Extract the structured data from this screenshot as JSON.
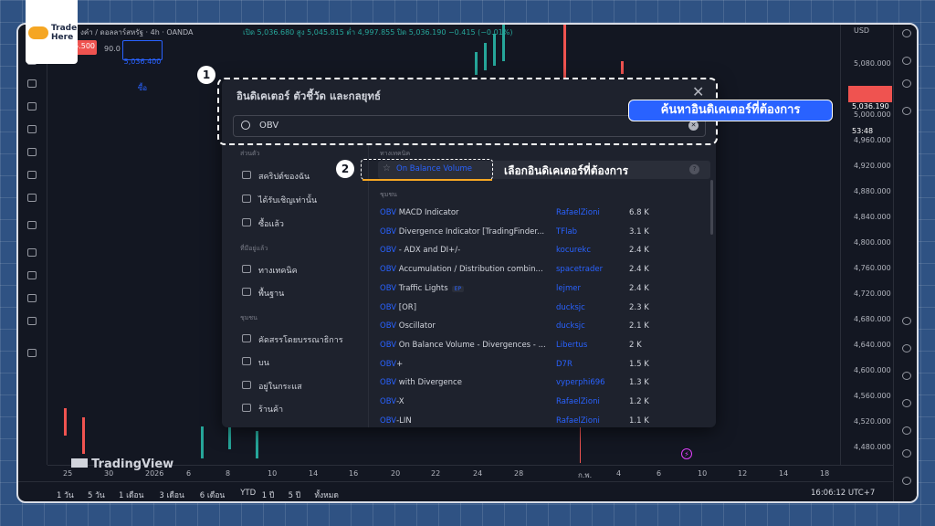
{
  "logo": {
    "line1": "Trade",
    "line2": "Here"
  },
  "header": {
    "symbol": "งคำ / ดอลลาร์สหรัฐ · 4h · OANDA",
    "ohlc": "เปิด 5,036.680 สูง 5,045.815 ต่ำ 4,997.855 ปิด 5,036.190 −0.415 (−0.01%)",
    "sell": "5.500",
    "spread": "90.0",
    "buy": "5,036.400",
    "buy_label": "ซื้อ"
  },
  "price_axis": {
    "currency": "USD",
    "labels": [
      "5,080.000",
      "5,000.000",
      "4,960.000",
      "4,920.000",
      "4,880.000",
      "4,840.000",
      "4,800.000",
      "4,760.000",
      "4,720.000",
      "4,680.000",
      "4,640.000",
      "4,600.000",
      "4,560.000",
      "4,520.000",
      "4,480.000"
    ],
    "last_price": "5,036.190",
    "countdown": "53:48"
  },
  "time_axis": [
    "25",
    "30",
    "2026",
    "6",
    "8",
    "10",
    "14",
    "16",
    "20",
    "22",
    "24",
    "28",
    "ก.พ.",
    "4",
    "6",
    "10",
    "12",
    "14",
    "18"
  ],
  "watermark": "TradingView",
  "ranges": [
    "1 วัน",
    "5 วัน",
    "1 เดือน",
    "3 เดือน",
    "6 เดือน",
    "YTD",
    "1 ปี",
    "5 ปี",
    "ทั้งหมด"
  ],
  "clock": "16:06:12 UTC+7",
  "dialog": {
    "title": "อินดิเคเตอร์ ตัวชี้วัด และกลยุทธ์",
    "search": "OBV",
    "sections": [
      {
        "heading": "ส่วนตัว",
        "items": [
          "สคริปต์ของฉัน",
          "ได้รับเชิญเท่านั้น",
          "ซื้อแล้ว"
        ]
      },
      {
        "heading": "ที่มีอยู่แล้ว",
        "items": [
          "ทางเทคนิค",
          "พื้นฐาน"
        ]
      },
      {
        "heading": "ชุมชน",
        "items": [
          "คัดสรรโดยบรรณาธิการ",
          "บน",
          "อยู่ในกระแส",
          "ร้านค้า"
        ]
      }
    ],
    "technical_heading": "ทางเทคนิค",
    "technical_result": "On Balance Volume",
    "community_heading": "ชุมชน",
    "rows": [
      [
        "OBV",
        " MACD Indicator",
        "RafaelZioni",
        "6.8 K"
      ],
      [
        "OBV",
        " Divergence Indicator [TradingFinder...",
        "TFlab",
        "3.1 K"
      ],
      [
        "OBV",
        " - ADX and DI+/-",
        "kocurekc",
        "2.4 K"
      ],
      [
        "OBV",
        " Accumulation / Distribution combin...",
        "spacetrader",
        "2.4 K"
      ],
      [
        "OBV",
        " Traffic Lights",
        "lejmer",
        "2.4 K"
      ],
      [
        "OBV",
        " [OR]",
        "ducksjc",
        "2.3 K"
      ],
      [
        "OBV",
        " Oscillator",
        "ducksjc",
        "2.1 K"
      ],
      [
        "OBV",
        " On Balance Volume - Divergences - ...",
        "Libertus",
        "2 K"
      ],
      [
        "OBV",
        "+",
        "D7R",
        "1.5 K"
      ],
      [
        "OBV",
        " with Divergence",
        "vyperphi696",
        "1.3 K"
      ],
      [
        "OBV",
        "-X",
        "RafaelZioni",
        "1.2 K"
      ],
      [
        "OBV",
        "-LIN",
        "RafaelZioni",
        "1.1 K"
      ]
    ],
    "badge": "EP"
  },
  "annotations": {
    "step1": "1",
    "step1_text": "ค้นหาอินดิเคเตอร์ที่ต้องการ",
    "step2": "2",
    "step2_text": "เลือกอินดิเคเตอร์ที่ต้องการ"
  }
}
